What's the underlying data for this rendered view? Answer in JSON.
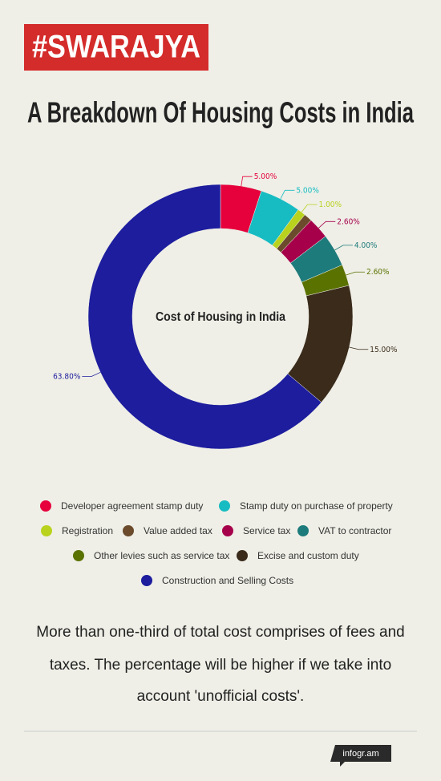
{
  "header": {
    "logo": "#SWARAJYA"
  },
  "chart_data": {
    "type": "donut",
    "title": "A Breakdown Of Housing Costs in India",
    "center_label": "Cost of Housing in India",
    "categories": [
      "Developer agreement stamp duty",
      "Stamp duty on purchase of property",
      "Registration",
      "Value added tax",
      "Service tax",
      "VAT to contractor",
      "Other levies such as service tax",
      "Excise and custom duty",
      "Construction and Selling Costs"
    ],
    "values": [
      5,
      5,
      1,
      1,
      2.6,
      4,
      2.6,
      15,
      63.8
    ],
    "value_labels": [
      "5.00%",
      "5.00%",
      "1.00%",
      null,
      "2.60%",
      "4.00%",
      "2.60%",
      "15.00%",
      "63.80%"
    ],
    "colors": [
      "#e6003c",
      "#17bcc2",
      "#b9d21e",
      "#6b4b2c",
      "#a6004b",
      "#1e7b7b",
      "#5a7200",
      "#3a2b1b",
      "#1d1d9e"
    ]
  },
  "caption": [
    "More than one-third of total cost comprises of fees and",
    "taxes. The percentage will be higher if we take into",
    "account 'unofficial costs'."
  ],
  "footer": {
    "brand": "infogr.am"
  }
}
